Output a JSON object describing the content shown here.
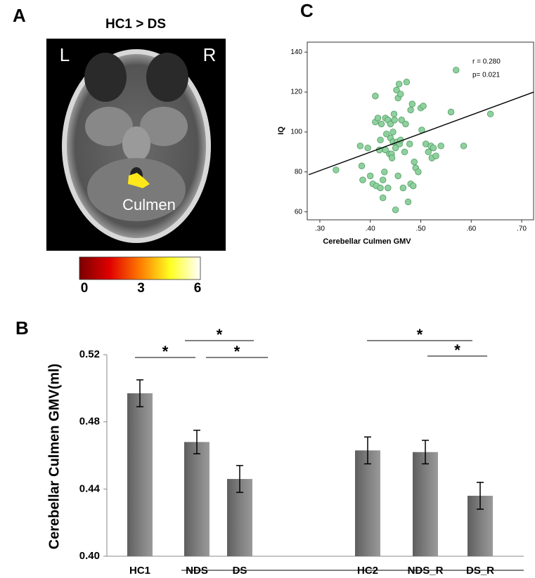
{
  "panel_a": {
    "panel": "A",
    "title": "HC1 > DS",
    "left": "L",
    "right": "R",
    "region": "Culmen",
    "colorbar": {
      "lim": [
        0,
        6
      ],
      "ticks": [
        0,
        3,
        6
      ],
      "colormap": [
        "#7a0000",
        "#e00000",
        "#ff7a00",
        "#ffff20",
        "#ffffff"
      ]
    }
  },
  "chart_data": [
    {
      "type": "bar",
      "panel": "B",
      "ylabel": "Cerebellar Culmen GMV(ml)",
      "categories": [
        "HC1",
        "NDS",
        "DS",
        "HC2",
        "NDS_R",
        "DS_R"
      ],
      "values": [
        0.497,
        0.468,
        0.446,
        0.463,
        0.462,
        0.436
      ],
      "errors": [
        0.008,
        0.007,
        0.008,
        0.008,
        0.007,
        0.008
      ],
      "color": "#747474",
      "ylim": [
        0.4,
        0.52
      ],
      "yticks": [
        {
          "value": 0.4,
          "label": "0.40"
        },
        {
          "value": 0.44,
          "label": "0.44"
        },
        {
          "value": 0.48,
          "label": "0.48"
        },
        {
          "value": 0.52,
          "label": "0.52"
        }
      ],
      "significance": [
        "*",
        "*",
        "*",
        "*",
        "*"
      ]
    },
    {
      "type": "scatter",
      "panel": "C",
      "xlabel": "Cerebellar Culmen GMV",
      "ylabel": "IQ",
      "annotations": [
        "r = 0.280",
        "p= 0.021"
      ],
      "color": "#8fd19e",
      "x": [
        0.332,
        0.38,
        0.383,
        0.385,
        0.395,
        0.4,
        0.405,
        0.41,
        0.41,
        0.412,
        0.415,
        0.418,
        0.42,
        0.42,
        0.422,
        0.425,
        0.425,
        0.428,
        0.43,
        0.43,
        0.432,
        0.435,
        0.435,
        0.438,
        0.44,
        0.44,
        0.442,
        0.443,
        0.445,
        0.445,
        0.447,
        0.448,
        0.45,
        0.45,
        0.452,
        0.453,
        0.455,
        0.455,
        0.457,
        0.458,
        0.46,
        0.46,
        0.462,
        0.465,
        0.468,
        0.47,
        0.472,
        0.475,
        0.478,
        0.48,
        0.48,
        0.483,
        0.485,
        0.487,
        0.49,
        0.495,
        0.5,
        0.502,
        0.505,
        0.51,
        0.515,
        0.52,
        0.522,
        0.525,
        0.53,
        0.54,
        0.56,
        0.57,
        0.585,
        0.638
      ],
      "values": [
        81,
        93,
        83,
        76,
        92,
        78,
        74,
        118,
        105,
        73,
        107,
        91,
        72,
        96,
        104,
        76,
        67,
        80,
        91,
        107,
        99,
        72,
        106,
        89,
        104,
        97,
        89,
        87,
        95,
        100,
        109,
        106,
        61,
        92,
        121,
        95,
        78,
        117,
        124,
        94,
        119,
        96,
        106,
        72,
        90,
        104,
        125,
        65,
        94,
        111,
        74,
        114,
        73,
        85,
        82,
        80,
        112,
        101,
        113,
        94,
        90,
        93,
        87,
        92,
        88,
        93,
        110,
        131,
        93,
        109
      ],
      "fit_line": {
        "x": [
          0.278,
          0.724
        ],
        "y": [
          78.6,
          120.0
        ]
      },
      "xlim": [
        0.275,
        0.725
      ],
      "ylim": [
        56,
        145
      ],
      "xticks": [
        {
          "value": 0.3,
          "label": ".30"
        },
        {
          "value": 0.4,
          "label": ".40"
        },
        {
          "value": 0.5,
          "label": ".50"
        },
        {
          "value": 0.6,
          "label": ".60"
        },
        {
          "value": 0.7,
          "label": ".70"
        }
      ],
      "yticks": [
        60,
        80,
        100,
        120,
        140
      ]
    }
  ]
}
